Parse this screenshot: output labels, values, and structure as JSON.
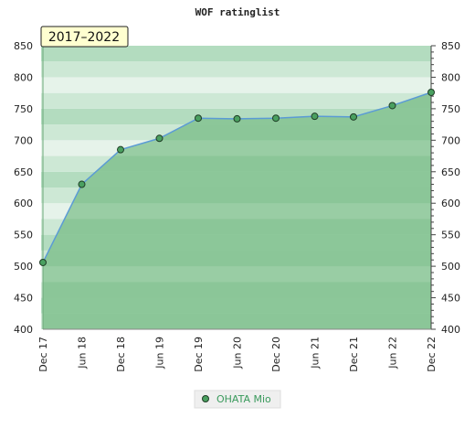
{
  "chart_data": {
    "type": "area",
    "title": "WOF ratinglist",
    "period_label": "2017–2022",
    "x": [
      "Dec 17",
      "Jun 18",
      "Dec 18",
      "Jun 19",
      "Dec 19",
      "Jun 20",
      "Dec 20",
      "Jun 21",
      "Dec 21",
      "Jun 22",
      "Dec 22"
    ],
    "series": [
      {
        "name": "OHATA Mio",
        "values": [
          506,
          630,
          685,
          703,
          735,
          734,
          735,
          738,
          737,
          755,
          776
        ]
      }
    ],
    "ylim": [
      400,
      850
    ],
    "yticks": [
      400,
      450,
      500,
      550,
      600,
      650,
      700,
      750,
      800,
      850
    ],
    "xlabel": "",
    "ylabel": "",
    "legend_position": "bottom-center",
    "colors": {
      "line": "#5b9bd5",
      "marker_fill": "#4aa060",
      "marker_stroke": "#1f3d26",
      "area": "#7fc08c",
      "band_light": "#e6f3ea",
      "band_mid": "#cde8d5",
      "band_dark": "#b3dcbf"
    }
  }
}
